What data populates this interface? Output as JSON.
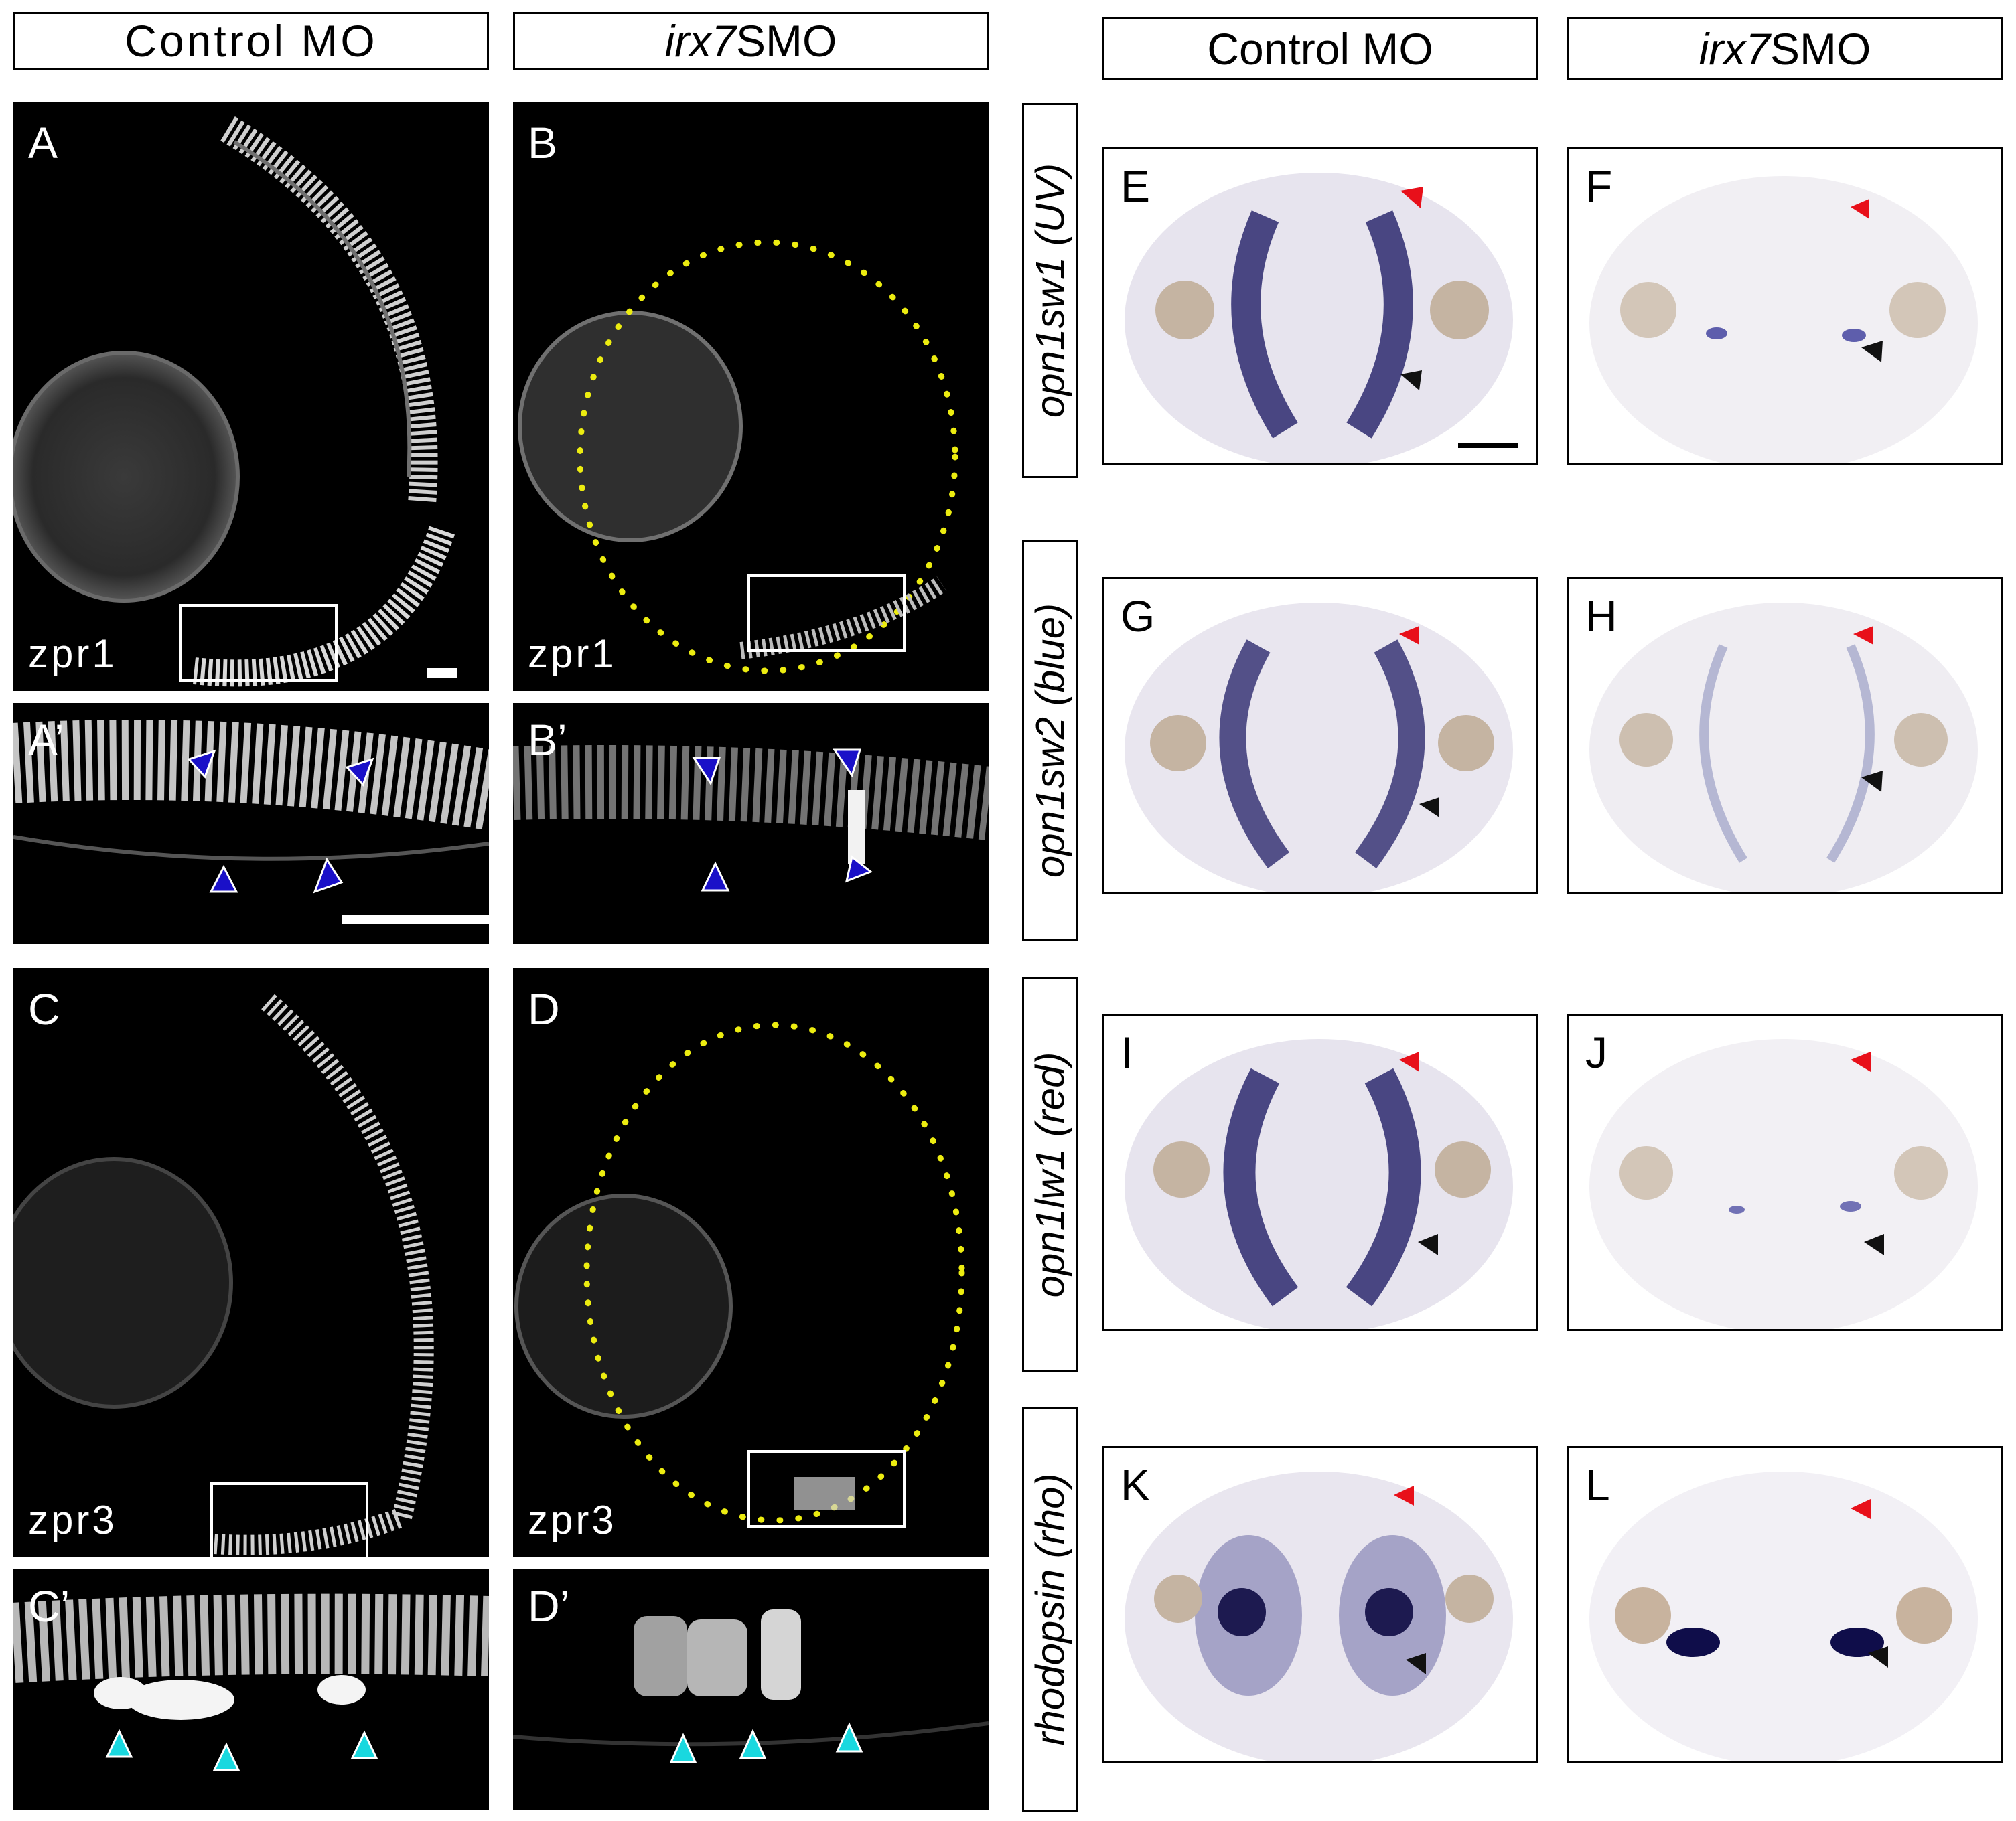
{
  "headers": {
    "control_left": "Control MO",
    "morph_left_gene": "irx7",
    "morph_left_suffix": "SMO",
    "control_right": "Control MO",
    "morph_right_gene": "irx7",
    "morph_right_suffix": "SMO"
  },
  "panels": {
    "A": "A",
    "A_prime": "A’",
    "B": "B",
    "B_prime": "B’",
    "C": "C",
    "C_prime": "C’",
    "D": "D",
    "D_prime": "D’",
    "E": "E",
    "F": "F",
    "G": "G",
    "H": "H",
    "I": "I",
    "J": "J",
    "K": "K",
    "L": "L"
  },
  "antibodies": {
    "A": "zpr1",
    "B": "zpr1",
    "C": "zpr3",
    "D": "zpr3"
  },
  "row_labels": [
    "opn1sw1 (UV)",
    "opn1sw2 (blue)",
    "opn1lw1 (red)",
    "rhodopsin (rho)"
  ],
  "colors": {
    "arrow_blue": "#1a10c8",
    "arrow_cyan": "#19d8df",
    "arrow_red": "#e8101a",
    "arrow_black": "#111111",
    "outline_yellow": "#ecec10",
    "stain_purple": "#2d2a6e"
  },
  "icons": [
    "arrowhead-icon"
  ]
}
